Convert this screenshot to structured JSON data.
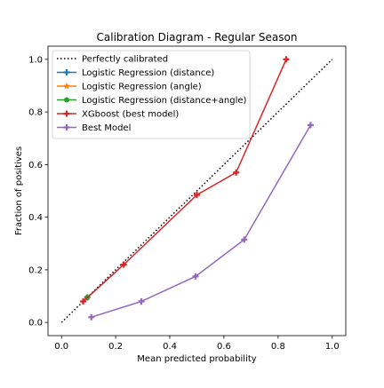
{
  "chart_data": {
    "type": "line",
    "title": "Calibration Diagram - Regular Season",
    "xlabel": "Mean predicted probability",
    "ylabel": "Fraction of positives",
    "xlim": [
      -0.05,
      1.05
    ],
    "ylim": [
      -0.05,
      1.05
    ],
    "xticks": [
      0.0,
      0.2,
      0.4,
      0.6,
      0.8,
      1.0
    ],
    "xtick_labels": [
      "0.0",
      "0.2",
      "0.4",
      "0.6",
      "0.8",
      "1.0"
    ],
    "yticks": [
      0.0,
      0.2,
      0.4,
      0.6,
      0.8,
      1.0
    ],
    "ytick_labels": [
      "0.0",
      "0.2",
      "0.4",
      "0.6",
      "0.8",
      "1.0"
    ],
    "grid": false,
    "legend_position": "top-left",
    "series": [
      {
        "name": "Perfectly calibrated",
        "color": "#000000",
        "style": "dotted",
        "marker": "none",
        "x": [
          0.0,
          1.0
        ],
        "y": [
          0.0,
          1.0
        ]
      },
      {
        "name": "Logistic Regression (distance)",
        "color": "#1f77b4",
        "style": "solid",
        "marker": "plus",
        "x": [
          0.095
        ],
        "y": [
          0.095
        ]
      },
      {
        "name": "Logistic Regression (angle)",
        "color": "#ff7f0e",
        "style": "solid",
        "marker": "star",
        "x": [
          0.095
        ],
        "y": [
          0.095
        ]
      },
      {
        "name": "Logistic Regression (distance+angle)",
        "color": "#2ca02c",
        "style": "solid",
        "marker": "circle",
        "x": [
          0.095
        ],
        "y": [
          0.095
        ]
      },
      {
        "name": "XGboost (best model)",
        "color": "#d62728",
        "style": "solid",
        "marker": "plus",
        "x": [
          0.08,
          0.23,
          0.5,
          0.645,
          0.83
        ],
        "y": [
          0.08,
          0.22,
          0.485,
          0.57,
          1.0
        ]
      },
      {
        "name": "Best Model",
        "color": "#9467bd",
        "style": "solid",
        "marker": "plus",
        "x": [
          0.11,
          0.295,
          0.495,
          0.675,
          0.92
        ],
        "y": [
          0.02,
          0.08,
          0.175,
          0.315,
          0.75
        ]
      }
    ]
  }
}
